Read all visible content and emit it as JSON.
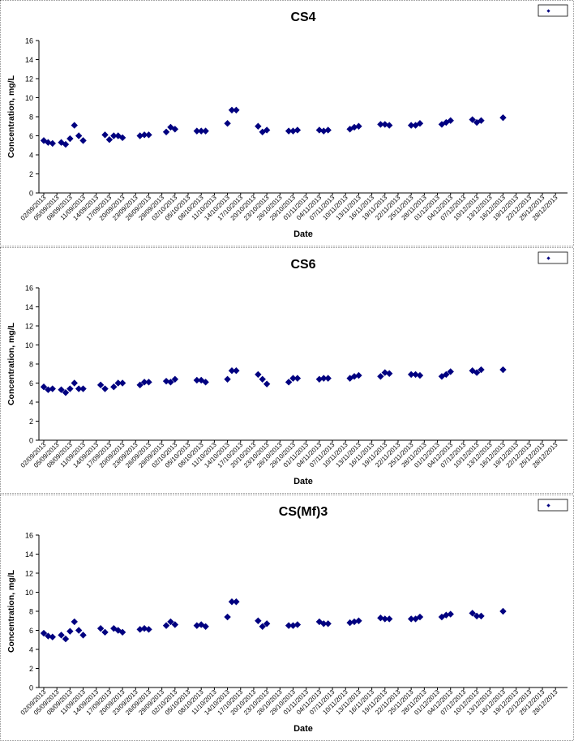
{
  "chart_data": [
    {
      "type": "scatter",
      "title": "CS4",
      "xlabel": "Date",
      "ylabel": "Concentration, mg/L",
      "ylim": [
        0,
        16
      ],
      "yticks": [
        0,
        2,
        4,
        6,
        8,
        10,
        12,
        14,
        16
      ],
      "grid": false,
      "legend_position": "top-right",
      "marker": "diamond",
      "color": "#000080",
      "x_tick_labels": [
        "02/09/2013",
        "05/09/2013",
        "08/09/2013",
        "11/09/2013",
        "14/09/2013",
        "17/09/2013",
        "20/09/2013",
        "23/09/2013",
        "26/09/2013",
        "29/09/2013",
        "02/10/2013",
        "05/10/2013",
        "08/10/2013",
        "11/10/2013",
        "14/10/2013",
        "17/10/2013",
        "20/10/2013",
        "23/10/2013",
        "26/10/2013",
        "29/10/2013",
        "01/11/2013",
        "04/11/2013",
        "07/11/2013",
        "10/11/2013",
        "13/11/2013",
        "16/11/2013",
        "19/11/2013",
        "22/11/2013",
        "25/11/2013",
        "28/11/2013",
        "01/12/2013",
        "04/12/2013",
        "07/12/2013",
        "10/12/2013",
        "13/12/2013",
        "16/12/2013",
        "19/12/2013",
        "22/12/2013",
        "25/12/2013",
        "28/12/2013"
      ],
      "points": [
        {
          "x": "02/09/2013",
          "y": 5.5
        },
        {
          "x": "03/09/2013",
          "y": 5.3
        },
        {
          "x": "04/09/2013",
          "y": 5.2
        },
        {
          "x": "06/09/2013",
          "y": 5.3
        },
        {
          "x": "07/09/2013",
          "y": 5.1
        },
        {
          "x": "08/09/2013",
          "y": 5.7
        },
        {
          "x": "09/09/2013",
          "y": 7.1
        },
        {
          "x": "10/09/2013",
          "y": 6.0
        },
        {
          "x": "11/09/2013",
          "y": 5.5
        },
        {
          "x": "16/09/2013",
          "y": 6.1
        },
        {
          "x": "17/09/2013",
          "y": 5.6
        },
        {
          "x": "18/09/2013",
          "y": 6.0
        },
        {
          "x": "19/09/2013",
          "y": 6.0
        },
        {
          "x": "20/09/2013",
          "y": 5.8
        },
        {
          "x": "24/09/2013",
          "y": 6.0
        },
        {
          "x": "25/09/2013",
          "y": 6.1
        },
        {
          "x": "26/09/2013",
          "y": 6.1
        },
        {
          "x": "30/09/2013",
          "y": 6.4
        },
        {
          "x": "01/10/2013",
          "y": 6.9
        },
        {
          "x": "02/10/2013",
          "y": 6.7
        },
        {
          "x": "07/10/2013",
          "y": 6.5
        },
        {
          "x": "08/10/2013",
          "y": 6.5
        },
        {
          "x": "09/10/2013",
          "y": 6.5
        },
        {
          "x": "14/10/2013",
          "y": 7.3
        },
        {
          "x": "15/10/2013",
          "y": 8.7
        },
        {
          "x": "16/10/2013",
          "y": 8.7
        },
        {
          "x": "21/10/2013",
          "y": 7.0
        },
        {
          "x": "22/10/2013",
          "y": 6.4
        },
        {
          "x": "23/10/2013",
          "y": 6.6
        },
        {
          "x": "28/10/2013",
          "y": 6.5
        },
        {
          "x": "29/10/2013",
          "y": 6.5
        },
        {
          "x": "30/10/2013",
          "y": 6.6
        },
        {
          "x": "04/11/2013",
          "y": 6.6
        },
        {
          "x": "05/11/2013",
          "y": 6.5
        },
        {
          "x": "06/11/2013",
          "y": 6.6
        },
        {
          "x": "11/11/2013",
          "y": 6.7
        },
        {
          "x": "12/11/2013",
          "y": 6.9
        },
        {
          "x": "13/11/2013",
          "y": 7.0
        },
        {
          "x": "18/11/2013",
          "y": 7.2
        },
        {
          "x": "19/11/2013",
          "y": 7.2
        },
        {
          "x": "20/11/2013",
          "y": 7.1
        },
        {
          "x": "25/11/2013",
          "y": 7.1
        },
        {
          "x": "26/11/2013",
          "y": 7.1
        },
        {
          "x": "27/11/2013",
          "y": 7.3
        },
        {
          "x": "02/12/2013",
          "y": 7.2
        },
        {
          "x": "03/12/2013",
          "y": 7.4
        },
        {
          "x": "04/12/2013",
          "y": 7.6
        },
        {
          "x": "09/12/2013",
          "y": 7.7
        },
        {
          "x": "10/12/2013",
          "y": 7.4
        },
        {
          "x": "11/12/2013",
          "y": 7.6
        },
        {
          "x": "16/12/2013",
          "y": 7.9
        }
      ]
    },
    {
      "type": "scatter",
      "title": "CS6",
      "xlabel": "Date",
      "ylabel": "Concentration, mg/L",
      "ylim": [
        0,
        16
      ],
      "yticks": [
        0,
        2,
        4,
        6,
        8,
        10,
        12,
        14,
        16
      ],
      "grid": false,
      "legend_position": "top-right",
      "marker": "diamond",
      "color": "#000080",
      "x_tick_labels": [
        "02/09/2013",
        "05/09/2013",
        "08/09/2013",
        "11/09/2013",
        "14/09/2013",
        "17/09/2013",
        "20/09/2013",
        "23/09/2013",
        "26/09/2013",
        "29/09/2013",
        "02/10/2013",
        "05/10/2013",
        "08/10/2013",
        "11/10/2013",
        "14/10/2013",
        "17/10/2013",
        "20/10/2013",
        "23/10/2013",
        "26/10/2013",
        "29/10/2013",
        "01/11/2013",
        "04/11/2013",
        "07/11/2013",
        "10/11/2013",
        "13/11/2013",
        "16/11/2013",
        "19/11/2013",
        "22/11/2013",
        "25/11/2013",
        "28/11/2013",
        "01/12/2013",
        "04/12/2013",
        "07/12/2013",
        "10/12/2013",
        "13/12/2013",
        "16/12/2013",
        "19/12/2013",
        "22/12/2013",
        "25/12/2013",
        "28/12/2013"
      ],
      "points": [
        {
          "x": "02/09/2013",
          "y": 5.6
        },
        {
          "x": "03/09/2013",
          "y": 5.3
        },
        {
          "x": "04/09/2013",
          "y": 5.4
        },
        {
          "x": "06/09/2013",
          "y": 5.3
        },
        {
          "x": "07/09/2013",
          "y": 5.0
        },
        {
          "x": "08/09/2013",
          "y": 5.4
        },
        {
          "x": "09/09/2013",
          "y": 6.0
        },
        {
          "x": "10/09/2013",
          "y": 5.4
        },
        {
          "x": "11/09/2013",
          "y": 5.4
        },
        {
          "x": "15/09/2013",
          "y": 5.8
        },
        {
          "x": "16/09/2013",
          "y": 5.4
        },
        {
          "x": "18/09/2013",
          "y": 5.6
        },
        {
          "x": "19/09/2013",
          "y": 6.0
        },
        {
          "x": "20/09/2013",
          "y": 6.0
        },
        {
          "x": "24/09/2013",
          "y": 5.8
        },
        {
          "x": "25/09/2013",
          "y": 6.1
        },
        {
          "x": "26/09/2013",
          "y": 6.1
        },
        {
          "x": "30/09/2013",
          "y": 6.2
        },
        {
          "x": "01/10/2013",
          "y": 6.1
        },
        {
          "x": "02/10/2013",
          "y": 6.4
        },
        {
          "x": "07/10/2013",
          "y": 6.3
        },
        {
          "x": "08/10/2013",
          "y": 6.3
        },
        {
          "x": "09/10/2013",
          "y": 6.1
        },
        {
          "x": "14/10/2013",
          "y": 6.4
        },
        {
          "x": "15/10/2013",
          "y": 7.3
        },
        {
          "x": "16/10/2013",
          "y": 7.3
        },
        {
          "x": "21/10/2013",
          "y": 6.9
        },
        {
          "x": "22/10/2013",
          "y": 6.4
        },
        {
          "x": "23/10/2013",
          "y": 5.9
        },
        {
          "x": "28/10/2013",
          "y": 6.1
        },
        {
          "x": "29/10/2013",
          "y": 6.5
        },
        {
          "x": "30/10/2013",
          "y": 6.5
        },
        {
          "x": "04/11/2013",
          "y": 6.4
        },
        {
          "x": "05/11/2013",
          "y": 6.5
        },
        {
          "x": "06/11/2013",
          "y": 6.5
        },
        {
          "x": "11/11/2013",
          "y": 6.5
        },
        {
          "x": "12/11/2013",
          "y": 6.7
        },
        {
          "x": "13/11/2013",
          "y": 6.8
        },
        {
          "x": "18/11/2013",
          "y": 6.7
        },
        {
          "x": "19/11/2013",
          "y": 7.1
        },
        {
          "x": "20/11/2013",
          "y": 7.0
        },
        {
          "x": "25/11/2013",
          "y": 6.9
        },
        {
          "x": "26/11/2013",
          "y": 6.9
        },
        {
          "x": "27/11/2013",
          "y": 6.8
        },
        {
          "x": "02/12/2013",
          "y": 6.7
        },
        {
          "x": "03/12/2013",
          "y": 6.9
        },
        {
          "x": "04/12/2013",
          "y": 7.2
        },
        {
          "x": "09/12/2013",
          "y": 7.3
        },
        {
          "x": "10/12/2013",
          "y": 7.1
        },
        {
          "x": "11/12/2013",
          "y": 7.4
        },
        {
          "x": "16/12/2013",
          "y": 7.4
        }
      ]
    },
    {
      "type": "scatter",
      "title": "CS(Mf)3",
      "xlabel": "Date",
      "ylabel": "Concentration, mg/L",
      "ylim": [
        0,
        16
      ],
      "yticks": [
        0,
        2,
        4,
        6,
        8,
        10,
        12,
        14,
        16
      ],
      "grid": false,
      "legend_position": "top-right",
      "marker": "diamond",
      "color": "#000080",
      "x_tick_labels": [
        "02/09/2013",
        "05/09/2013",
        "08/09/2013",
        "11/09/2013",
        "14/09/2013",
        "17/09/2013",
        "20/09/2013",
        "23/09/2013",
        "26/09/2013",
        "29/09/2013",
        "02/10/2013",
        "05/10/2013",
        "08/10/2013",
        "11/10/2013",
        "14/10/2013",
        "17/10/2013",
        "20/10/2013",
        "23/10/2013",
        "26/10/2013",
        "29/10/2013",
        "01/11/2013",
        "04/11/2013",
        "07/11/2013",
        "10/11/2013",
        "13/11/2013",
        "16/11/2013",
        "19/11/2013",
        "22/11/2013",
        "25/11/2013",
        "28/11/2013",
        "01/12/2013",
        "04/12/2013",
        "07/12/2013",
        "10/12/2013",
        "13/12/2013",
        "16/12/2013",
        "19/12/2013",
        "22/12/2013",
        "25/12/2013",
        "28/12/2013"
      ],
      "points": [
        {
          "x": "02/09/2013",
          "y": 5.7
        },
        {
          "x": "03/09/2013",
          "y": 5.4
        },
        {
          "x": "04/09/2013",
          "y": 5.3
        },
        {
          "x": "06/09/2013",
          "y": 5.5
        },
        {
          "x": "07/09/2013",
          "y": 5.1
        },
        {
          "x": "08/09/2013",
          "y": 5.9
        },
        {
          "x": "09/09/2013",
          "y": 6.9
        },
        {
          "x": "10/09/2013",
          "y": 6.0
        },
        {
          "x": "11/09/2013",
          "y": 5.5
        },
        {
          "x": "15/09/2013",
          "y": 6.2
        },
        {
          "x": "16/09/2013",
          "y": 5.8
        },
        {
          "x": "18/09/2013",
          "y": 6.2
        },
        {
          "x": "19/09/2013",
          "y": 6.0
        },
        {
          "x": "20/09/2013",
          "y": 5.8
        },
        {
          "x": "24/09/2013",
          "y": 6.1
        },
        {
          "x": "25/09/2013",
          "y": 6.2
        },
        {
          "x": "26/09/2013",
          "y": 6.1
        },
        {
          "x": "30/09/2013",
          "y": 6.5
        },
        {
          "x": "01/10/2013",
          "y": 6.9
        },
        {
          "x": "02/10/2013",
          "y": 6.6
        },
        {
          "x": "07/10/2013",
          "y": 6.5
        },
        {
          "x": "08/10/2013",
          "y": 6.6
        },
        {
          "x": "09/10/2013",
          "y": 6.4
        },
        {
          "x": "14/10/2013",
          "y": 7.4
        },
        {
          "x": "15/10/2013",
          "y": 9.0
        },
        {
          "x": "16/10/2013",
          "y": 9.0
        },
        {
          "x": "21/10/2013",
          "y": 7.0
        },
        {
          "x": "22/10/2013",
          "y": 6.4
        },
        {
          "x": "23/10/2013",
          "y": 6.7
        },
        {
          "x": "28/10/2013",
          "y": 6.5
        },
        {
          "x": "29/10/2013",
          "y": 6.5
        },
        {
          "x": "30/10/2013",
          "y": 6.6
        },
        {
          "x": "04/11/2013",
          "y": 6.9
        },
        {
          "x": "05/11/2013",
          "y": 6.7
        },
        {
          "x": "06/11/2013",
          "y": 6.7
        },
        {
          "x": "11/11/2013",
          "y": 6.8
        },
        {
          "x": "12/11/2013",
          "y": 6.9
        },
        {
          "x": "13/11/2013",
          "y": 7.0
        },
        {
          "x": "18/11/2013",
          "y": 7.3
        },
        {
          "x": "19/11/2013",
          "y": 7.2
        },
        {
          "x": "20/11/2013",
          "y": 7.2
        },
        {
          "x": "25/11/2013",
          "y": 7.2
        },
        {
          "x": "26/11/2013",
          "y": 7.2
        },
        {
          "x": "27/11/2013",
          "y": 7.4
        },
        {
          "x": "02/12/2013",
          "y": 7.4
        },
        {
          "x": "03/12/2013",
          "y": 7.6
        },
        {
          "x": "04/12/2013",
          "y": 7.7
        },
        {
          "x": "09/12/2013",
          "y": 7.8
        },
        {
          "x": "10/12/2013",
          "y": 7.5
        },
        {
          "x": "11/12/2013",
          "y": 7.5
        },
        {
          "x": "16/12/2013",
          "y": 8.0
        }
      ]
    }
  ]
}
